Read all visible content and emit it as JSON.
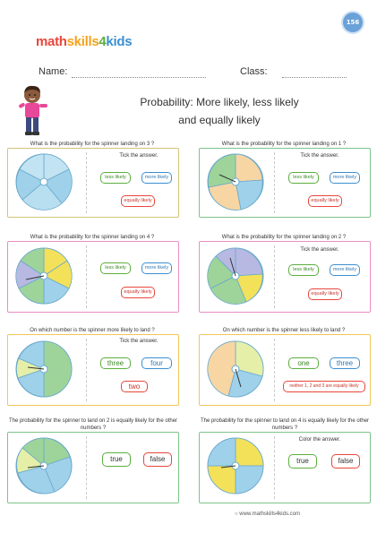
{
  "logo": {
    "parts": [
      "math",
      "skills",
      "4",
      "kids"
    ],
    "colors": [
      "#e8463b",
      "#f4a21c",
      "#5cae3d",
      "#3b8fd1"
    ]
  },
  "page_number": "156",
  "header": {
    "name_label": "Name:",
    "class_label": "Class:"
  },
  "title": {
    "line1": "Probability: More likely, less likely",
    "line2": "and equally likely"
  },
  "footer": "www.mathskills4kids.com",
  "cards": [
    {
      "question": "What is the probability for the spinner landing on 3 ?",
      "instruction": "Tick the answer.",
      "buttons": [
        "less likely",
        "more likely",
        "equally likely"
      ]
    },
    {
      "question": "What is the probability for the spinner landing on 1 ?",
      "instruction": "Tick the answer.",
      "buttons": [
        "less likely",
        "more likely",
        "equally likely"
      ]
    },
    {
      "question": "What is the probability for the spinner landing on 4 ?",
      "instruction": "",
      "buttons": [
        "less likely",
        "more likely",
        "equally likely"
      ]
    },
    {
      "question": "What is the probability for the spinner landing on 2 ?",
      "instruction": "Tick the answer.",
      "buttons": [
        "less likely",
        "more likely",
        "equally likely"
      ]
    },
    {
      "question": "On which number is the spinner more likely to land ?",
      "instruction": "Tick the answer.",
      "buttons": [
        "three",
        "four",
        "two"
      ]
    },
    {
      "question": "On which number is the spinner less likely to land ?",
      "instruction": "",
      "buttons": [
        "one",
        "three",
        "neither 1, 2 and 3 are equally likely"
      ]
    },
    {
      "question": "The probability for the spinner to land on 2 is equally likely for the other numbers ?",
      "instruction": "",
      "buttons": [
        "true",
        "false"
      ]
    },
    {
      "question": "The probability for the spinner to land on 4 is equally likely for the other numbers ?",
      "instruction": "Color the answer.",
      "buttons": [
        "true",
        "false"
      ]
    }
  ]
}
